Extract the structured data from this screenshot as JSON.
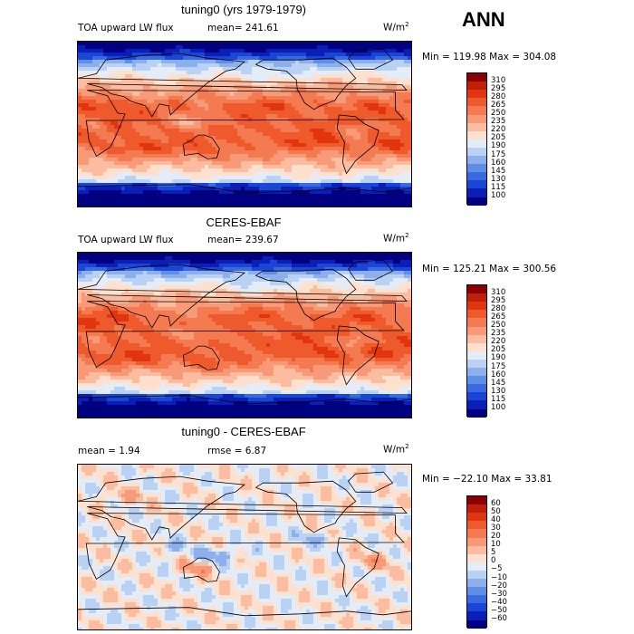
{
  "season": "ANN",
  "panels": [
    {
      "title": "tuning0 (yrs 1979-1979)",
      "left_label": "TOA upward LW flux",
      "mean_label": "mean= 241.61",
      "units": "W/m",
      "units_sup": "2",
      "minmax": "Min = 119.98 Max = 304.08",
      "map_type": "absolute",
      "levels": [
        "310",
        "295",
        "280",
        "265",
        "250",
        "235",
        "220",
        "205",
        "190",
        "175",
        "160",
        "145",
        "130",
        "115",
        "100"
      ],
      "colors": [
        "#8b0000",
        "#c0200a",
        "#e0350f",
        "#ee5a2c",
        "#f47a52",
        "#f89a78",
        "#fbbc9f",
        "#fde0cd",
        "#e4ecf8",
        "#b9d1f3",
        "#8db0ec",
        "#5f8ee6",
        "#3a6ae0",
        "#1a45d6",
        "#0a1fb8",
        "#000080"
      ]
    },
    {
      "title": "CERES-EBAF",
      "left_label": "TOA upward LW flux",
      "mean_label": "mean= 239.67",
      "units": "W/m",
      "units_sup": "2",
      "minmax": "Min = 125.21 Max = 300.56",
      "map_type": "absolute",
      "levels": [
        "310",
        "295",
        "280",
        "265",
        "250",
        "235",
        "220",
        "205",
        "190",
        "175",
        "160",
        "145",
        "130",
        "115",
        "100"
      ],
      "colors": [
        "#8b0000",
        "#c0200a",
        "#e0350f",
        "#ee5a2c",
        "#f47a52",
        "#f89a78",
        "#fbbc9f",
        "#fde0cd",
        "#e4ecf8",
        "#b9d1f3",
        "#8db0ec",
        "#5f8ee6",
        "#3a6ae0",
        "#1a45d6",
        "#0a1fb8",
        "#000080"
      ]
    },
    {
      "title": "tuning0 - CERES-EBAF",
      "mean_label": "mean =   1.94",
      "rmse_label": "rmse =   6.87",
      "units": "W/m",
      "units_sup": "2",
      "minmax": "Min = −22.10 Max =  33.81",
      "map_type": "difference",
      "levels": [
        "60",
        "50",
        "40",
        "30",
        "20",
        "10",
        "5",
        "0",
        "−5",
        "−10",
        "−20",
        "−30",
        "−40",
        "−50",
        "−60"
      ],
      "colors": [
        "#8b0000",
        "#c0200a",
        "#e0350f",
        "#ee5a2c",
        "#f47a52",
        "#f89a78",
        "#fbbc9f",
        "#fde0cd",
        "#e4ecf8",
        "#b9d1f3",
        "#8db0ec",
        "#5f8ee6",
        "#3a6ae0",
        "#1a45d6",
        "#0a1fb8",
        "#000080"
      ]
    }
  ]
}
